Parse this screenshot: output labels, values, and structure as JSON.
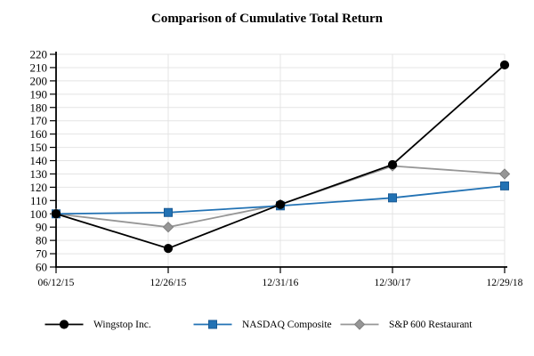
{
  "chart_data": {
    "type": "line",
    "title": "Comparison of Cumulative Total Return",
    "categories": [
      "06/12/15",
      "12/26/15",
      "12/31/16",
      "12/30/17",
      "12/29/18"
    ],
    "series": [
      {
        "name": "Wingstop Inc.",
        "values": [
          100,
          74,
          107,
          137,
          212
        ],
        "color": "#000000",
        "edge": "#000000",
        "marker": "circle"
      },
      {
        "name": "NASDAQ Composite",
        "values": [
          100,
          101,
          106,
          112,
          121
        ],
        "color": "#2272b4",
        "edge": "#1a5a94",
        "marker": "square"
      },
      {
        "name": "S&P 600 Restaurant",
        "values": [
          100,
          90,
          107,
          136,
          130
        ],
        "color": "#969696",
        "edge": "#7f7f7f",
        "marker": "diamond"
      }
    ],
    "ylim": [
      60,
      220
    ],
    "y_step": 10,
    "yticks": [
      60,
      70,
      80,
      90,
      100,
      110,
      120,
      130,
      140,
      150,
      160,
      170,
      180,
      190,
      200,
      210,
      220
    ],
    "grid": true,
    "grid_color": "#e4e4e4",
    "axis_color": "#000000",
    "legend_position": "bottom"
  }
}
